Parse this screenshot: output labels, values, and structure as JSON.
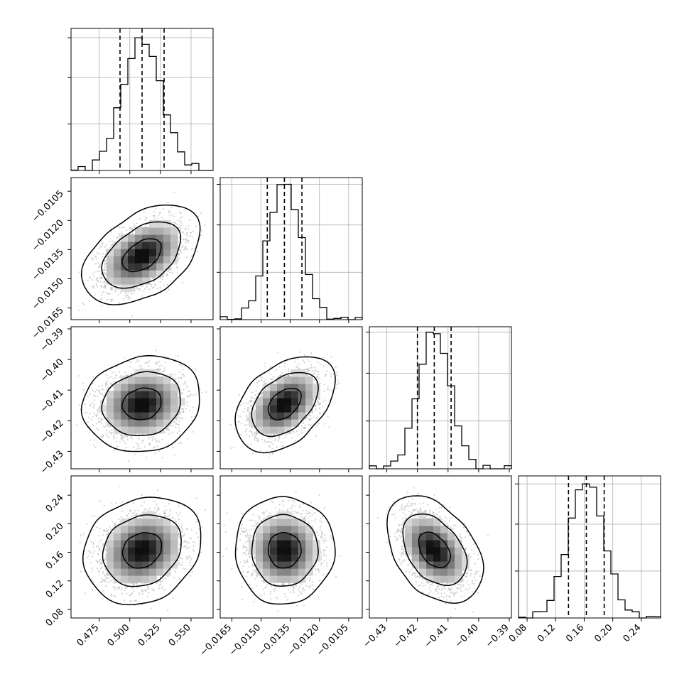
{
  "chart_data": {
    "type": "corner",
    "grid": true,
    "histogram_style": "step",
    "scatter_color": "#aaaaaa",
    "density_colormap": "greys",
    "contour_color": "#000000",
    "quantile_line_style": "dashed",
    "parameters": [
      {
        "range": [
          0.452,
          0.568
        ],
        "ticks": [
          0.475,
          0.5,
          0.525,
          0.55
        ],
        "tick_labels": [
          "0.475",
          "0.500",
          "0.525",
          "0.550"
        ],
        "mean": 0.51,
        "sd": 0.016,
        "quantiles": [
          0.492,
          0.51,
          0.528
        ],
        "hist_ylim": [
          0,
          1.07
        ]
      },
      {
        "range": [
          -0.0171,
          -0.0098
        ],
        "ticks": [
          -0.0165,
          -0.015,
          -0.0135,
          -0.012,
          -0.0105
        ],
        "tick_labels": [
          "−0.0165",
          "−0.0150",
          "−0.0135",
          "−0.0120",
          "−0.0105"
        ],
        "mean": -0.0138,
        "sd": 0.00085,
        "quantiles": [
          -0.01468,
          -0.0138,
          -0.0129
        ],
        "hist_ylim": [
          0,
          1.05
        ]
      },
      {
        "range": [
          -0.4357,
          -0.3893
        ],
        "ticks": [
          -0.43,
          -0.42,
          -0.41,
          -0.4,
          -0.39
        ],
        "tick_labels": [
          "−0.43",
          "−0.42",
          "−0.41",
          "−0.40",
          "−0.39"
        ],
        "mean": -0.4145,
        "sd": 0.0052,
        "quantiles": [
          -0.42,
          -0.4145,
          -0.409
        ],
        "hist_ylim": [
          0,
          1.04
        ]
      },
      {
        "range": [
          0.068,
          0.267
        ],
        "ticks": [
          0.08,
          0.12,
          0.16,
          0.2,
          0.24
        ],
        "tick_labels": [
          "0.08",
          "0.12",
          "0.16",
          "0.20",
          "0.24"
        ],
        "mean": 0.163,
        "sd": 0.025,
        "quantiles": [
          0.138,
          0.163,
          0.188
        ],
        "hist_ylim": [
          0,
          1.06
        ]
      }
    ],
    "correlations": [
      {
        "row": 1,
        "col": 0,
        "r": 0.45
      },
      {
        "row": 2,
        "col": 0,
        "r": 0.12
      },
      {
        "row": 2,
        "col": 1,
        "r": 0.42
      },
      {
        "row": 3,
        "col": 0,
        "r": 0.18
      },
      {
        "row": 3,
        "col": 1,
        "r": 0.0
      },
      {
        "row": 3,
        "col": 2,
        "r": -0.4
      }
    ]
  }
}
